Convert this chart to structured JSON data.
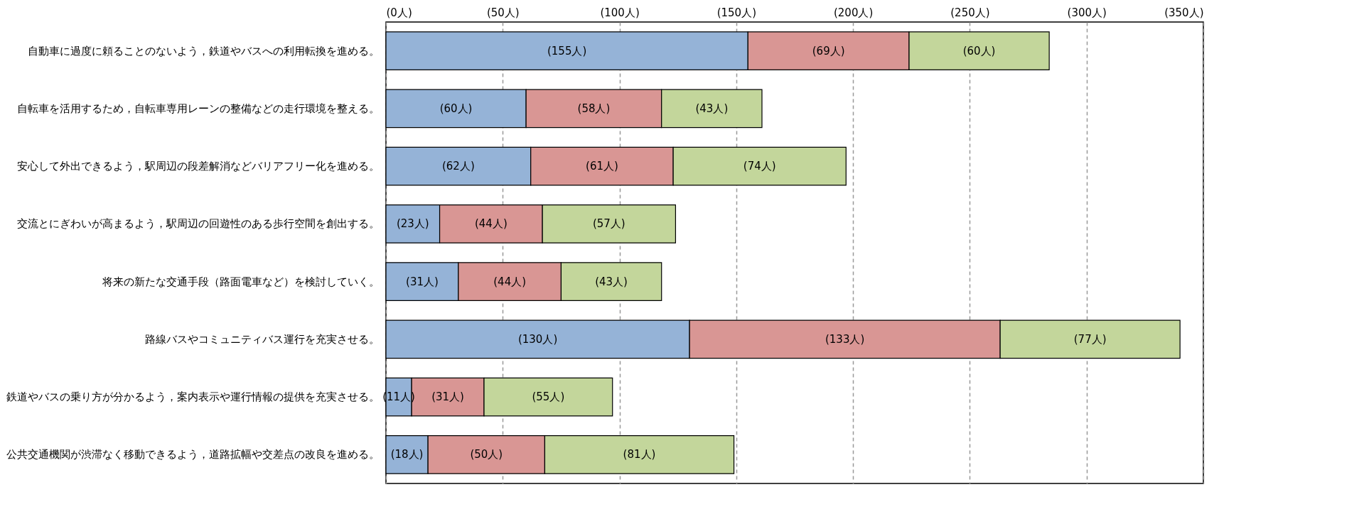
{
  "chart_data": {
    "type": "bar",
    "orientation": "horizontal",
    "stacked": true,
    "categories": [
      "自動車に過度に頼ることのないよう，鉄道やバスへの利用転換を進める。",
      "自転車を活用するため，自転車専用レーンの整備などの走行環境を整える。",
      "安心して外出できるよう，駅周辺の段差解消などバリアフリー化を進める。",
      "交流とにぎわいが高まるよう，駅周辺の回遊性のある歩行空間を創出する。",
      "将来の新たな交通手段（路面電車など）を検討していく。",
      "路線バスやコミュニティバス運行を充実させる。",
      "鉄道やバスの乗り方が分かるよう，案内表示や運行情報の提供を充実させる。",
      "公共交通機関が渋滞なく移動できるよう，道路拡幅や交差点の改良を進める。"
    ],
    "series": [
      {
        "color": "#95b3d7",
        "values": [
          155,
          60,
          62,
          23,
          31,
          130,
          11,
          18
        ],
        "value_labels": [
          "(155人)",
          "(60人)",
          "(62人)",
          "(23人)",
          "(31人)",
          "(130人)",
          "(11人)",
          "(18人)"
        ]
      },
      {
        "color": "#d99694",
        "values": [
          69,
          58,
          61,
          44,
          44,
          133,
          31,
          50
        ],
        "value_labels": [
          "(69人)",
          "(58人)",
          "(61人)",
          "(44人)",
          "(44人)",
          "(133人)",
          "(31人)",
          "(50人)"
        ]
      },
      {
        "color": "#c3d69b",
        "values": [
          60,
          43,
          74,
          57,
          43,
          77,
          55,
          81
        ],
        "value_labels": [
          "(60人)",
          "(43人)",
          "(74人)",
          "(57人)",
          "(43人)",
          "(77人)",
          "(55人)",
          "(81人)"
        ]
      }
    ],
    "xlim": [
      0,
      350
    ],
    "xticks": [
      {
        "value": 0,
        "label": "(0人)"
      },
      {
        "value": 50,
        "label": "(50人)"
      },
      {
        "value": 100,
        "label": "(100人)"
      },
      {
        "value": 150,
        "label": "(150人)"
      },
      {
        "value": 200,
        "label": "(200人)"
      },
      {
        "value": 250,
        "label": "(250人)"
      },
      {
        "value": 300,
        "label": "(300人)"
      },
      {
        "value": 350,
        "label": "(350人)"
      }
    ],
    "grid": "x",
    "legend": false
  }
}
